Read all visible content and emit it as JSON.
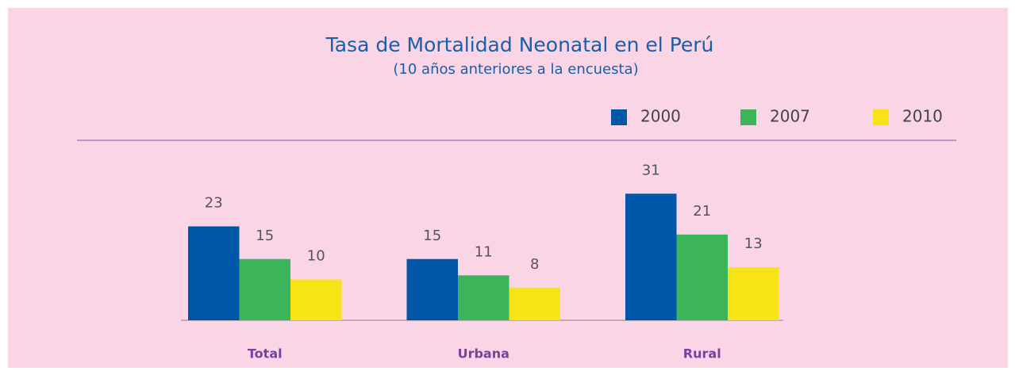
{
  "chart_data": {
    "type": "bar",
    "title": "Tasa de Mortalidad Neonatal en el Perú",
    "subtitle": "(10 años anteriores a la encuesta)",
    "categories": [
      "Total",
      "Urbana",
      "Rural"
    ],
    "series": [
      {
        "name": "2000",
        "color": "#0057a8",
        "values": [
          23,
          15,
          31
        ]
      },
      {
        "name": "2007",
        "color": "#3cb55a",
        "values": [
          15,
          11,
          21
        ]
      },
      {
        "name": "2010",
        "color": "#f7e316",
        "values": [
          10,
          8,
          13
        ]
      }
    ]
  }
}
